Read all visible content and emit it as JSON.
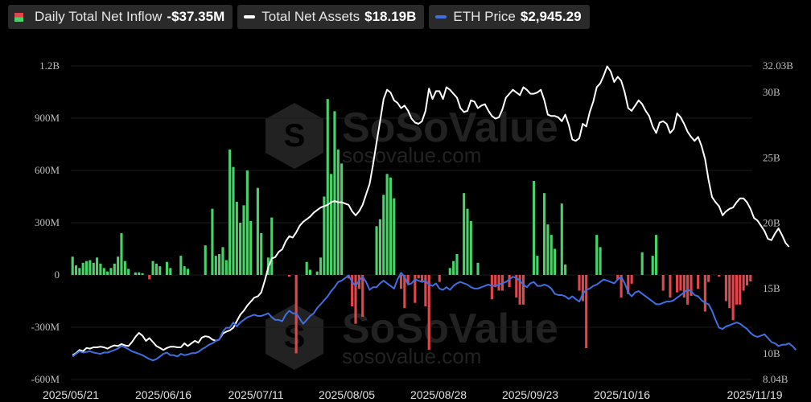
{
  "legend": {
    "inflow": {
      "label": "Daily Total Net Inflow",
      "value": "-$37.35M"
    },
    "assets": {
      "label": "Total Net Assets",
      "value": "$18.19B",
      "color": "#ffffff"
    },
    "eth": {
      "label": "ETH Price",
      "value": "$2,945.29",
      "color": "#3f6fe0"
    }
  },
  "watermark": {
    "brand": "SoSoValue",
    "site": "sosovalue.com"
  },
  "colors": {
    "positive": "#4bd16a",
    "negative": "#e0474c",
    "assets_line": "#ffffff",
    "eth_line": "#3f6fe0",
    "background": "#000000"
  },
  "chart_data": {
    "type": "bar",
    "x_ticks": [
      "2025/05/21",
      "2025/06/16",
      "2025/07/11",
      "2025/08/05",
      "2025/08/28",
      "2025/09/23",
      "2025/10/16",
      "2025/11/19"
    ],
    "x_range": [
      "2025/05/21",
      "2025/11/19"
    ],
    "left_axis": {
      "ticks": [
        "1.2B",
        "900M",
        "600M",
        "300M",
        "0",
        "-300M",
        "-600M"
      ],
      "ylim": [
        -600,
        1200
      ],
      "unit": "M"
    },
    "right_axis": {
      "ticks": [
        "32.03B",
        "30B",
        "25B",
        "20B",
        "15B",
        "10B",
        "8.04B"
      ],
      "ylim": [
        8.04,
        32.03
      ],
      "unit": "B"
    },
    "daily_net_inflow_M": [
      105,
      55,
      40,
      70,
      80,
      85,
      70,
      100,
      65,
      40,
      20,
      40,
      65,
      105,
      240,
      80,
      35,
      0,
      15,
      15,
      10,
      0,
      -25,
      80,
      65,
      50,
      0,
      75,
      40,
      0,
      0,
      110,
      50,
      35,
      0,
      0,
      0,
      0,
      170,
      0,
      380,
      110,
      120,
      160,
      85,
      720,
      620,
      420,
      300,
      400,
      600,
      310,
      0,
      500,
      240,
      0,
      100,
      330,
      0,
      0,
      0,
      0,
      -10,
      0,
      -450,
      0,
      0,
      75,
      30,
      0,
      20,
      100,
      450,
      1010,
      580,
      940,
      720,
      640,
      0,
      -20,
      -180,
      -280,
      -80,
      -240,
      0,
      0,
      0,
      280,
      320,
      460,
      580,
      560,
      440,
      0,
      -80,
      -190,
      -50,
      0,
      -160,
      -20,
      -40,
      -180,
      -430,
      0,
      0,
      -40,
      0,
      0,
      40,
      80,
      120,
      0,
      470,
      380,
      310,
      0,
      70,
      0,
      0,
      0,
      -140,
      -70,
      -90,
      -90,
      0,
      -70,
      0,
      -130,
      -170,
      -170,
      0,
      0,
      540,
      110,
      0,
      470,
      290,
      230,
      150,
      0,
      410,
      60,
      0,
      0,
      0,
      -90,
      -150,
      -420,
      0,
      0,
      230,
      160,
      0,
      0,
      0,
      0,
      -30,
      -130,
      0,
      -110,
      -50,
      0,
      0,
      130,
      0,
      0,
      110,
      230,
      0,
      -90,
      0,
      -130,
      0,
      -100,
      -90,
      -130,
      -170,
      -120,
      0,
      -80,
      0,
      -210,
      -40,
      0,
      0,
      -10,
      0,
      -150,
      -190,
      -260,
      -170,
      -170,
      -90,
      -60,
      -37.35
    ],
    "total_net_assets_B": [
      9.9,
      10.05,
      10.3,
      10.2,
      10.45,
      10.4,
      10.5,
      10.5,
      10.55,
      10.5,
      10.4,
      10.55,
      10.65,
      10.6,
      10.75,
      10.65,
      10.6,
      10.9,
      11.3,
      11.6,
      11.4,
      11.0,
      11.2,
      10.9,
      10.6,
      10.45,
      10.3,
      10.45,
      10.55,
      10.55,
      10.5,
      10.5,
      10.8,
      10.6,
      10.8,
      11.0,
      10.85,
      11.25,
      11.35,
      11.3,
      11.1,
      11.0,
      11.1,
      11.55,
      11.7,
      11.8,
      12.0,
      12.5,
      13.0,
      13.3,
      13.7,
      14.0,
      14.3,
      14.4,
      14.7,
      15.6,
      16.6,
      17.3,
      17.4,
      17.8,
      18.0,
      18.6,
      19.0,
      18.9,
      19.3,
      19.8,
      20.1,
      20.3,
      20.5,
      20.8,
      21.0,
      21.2,
      21.3,
      21.4,
      21.6,
      21.7,
      21.6,
      21.6,
      21.5,
      21.4,
      20.9,
      20.6,
      20.9,
      21.4,
      22.2,
      23.0,
      24.5,
      26.2,
      27.8,
      29.5,
      30.2,
      30.0,
      29.4,
      29.2,
      28.8,
      29.0,
      28.6,
      28.0,
      27.7,
      27.6,
      27.8,
      28.6,
      30.3,
      29.5,
      30.1,
      30.1,
      29.5,
      30.4,
      30.2,
      29.9,
      29.6,
      28.8,
      28.5,
      28.6,
      29.4,
      29.3,
      28.8,
      29.0,
      29.1,
      28.6,
      28.2,
      28.0,
      28.1,
      28.7,
      29.6,
      29.9,
      30.2,
      30.0,
      29.8,
      30.4,
      30.2,
      29.9,
      29.9,
      30.0,
      30.2,
      29.4,
      28.3,
      28.2,
      28.2,
      28.1,
      27.8,
      28.3,
      27.5,
      26.4,
      26.3,
      26.5,
      27.6,
      27.4,
      28.5,
      29.3,
      30.4,
      30.7,
      31.3,
      32.0,
      31.6,
      30.8,
      31.2,
      30.9,
      30.0,
      28.8,
      28.6,
      29.0,
      29.4,
      29.1,
      28.6,
      28.2,
      27.4,
      26.9,
      27.7,
      27.8,
      27.6,
      26.9,
      27.2,
      28.4,
      28.1,
      27.6,
      27.0,
      26.6,
      26.3,
      26.6,
      25.9,
      24.9,
      23.3,
      22.0,
      21.6,
      21.3,
      20.6,
      20.9,
      21.1,
      21.2,
      21.6,
      21.9,
      21.9,
      21.6,
      21.1,
      20.4,
      20.2,
      19.8,
      19.4,
      18.8,
      18.7,
      19.2,
      19.6,
      19.1,
      18.5,
      18.19
    ],
    "eth_price_bands_B": [
      9.8,
      10.0,
      10.2,
      10.1,
      10.15,
      10.2,
      10.1,
      10.05,
      10.0,
      10.1,
      10.1,
      10.2,
      10.3,
      10.4,
      10.6,
      10.5,
      10.35,
      10.2,
      10.1,
      10.0,
      9.9,
      9.75,
      9.6,
      9.5,
      9.6,
      9.8,
      10.0,
      10.1,
      9.9,
      9.9,
      9.8,
      10.0,
      9.9,
      9.95,
      10.05,
      10.05,
      10.15,
      10.35,
      10.5,
      10.7,
      10.8,
      11.0,
      11.1,
      11.7,
      12.0,
      12.0,
      12.4,
      12.1,
      12.4,
      12.6,
      12.8,
      12.9,
      13.0,
      12.9,
      12.9,
      13.0,
      13.1,
      12.8,
      12.6,
      12.6,
      12.5,
      13.0,
      13.3,
      13.1,
      13.1,
      12.7,
      12.3,
      12.6,
      12.9,
      13.1,
      13.5,
      13.8,
      14.1,
      14.4,
      14.8,
      15.1,
      15.5,
      15.6,
      15.8,
      16.0,
      15.5,
      15.2,
      15.6,
      15.9,
      15.5,
      14.9,
      15.1,
      15.1,
      15.4,
      15.6,
      15.4,
      15.2,
      15.0,
      15.7,
      16.2,
      15.9,
      15.3,
      15.4,
      15.7,
      15.6,
      15.5,
      15.6,
      15.3,
      15.2,
      15.4,
      15.0,
      14.9,
      15.1,
      14.9,
      15.2,
      15.4,
      15.5,
      15.4,
      15.3,
      15.1,
      15.0,
      15.0,
      15.1,
      15.2,
      15.3,
      15.2,
      15.2,
      15.3,
      15.4,
      15.5,
      15.7,
      15.9,
      15.8,
      15.6,
      15.3,
      15.1,
      15.4,
      15.5,
      15.2,
      15.2,
      15.3,
      15.2,
      15.0,
      14.6,
      14.5,
      14.5,
      14.4,
      14.2,
      14.4,
      14.2,
      14.0,
      14.6,
      14.9,
      15.0,
      15.2,
      15.3,
      15.5,
      15.7,
      15.6,
      15.5,
      15.4,
      15.7,
      15.9,
      15.4,
      14.7,
      14.4,
      14.7,
      14.8,
      14.6,
      14.4,
      14.2,
      14.0,
      13.8,
      13.8,
      13.9,
      14.0,
      14.0,
      14.1,
      14.3,
      14.5,
      14.7,
      14.9,
      14.8,
      14.5,
      14.4,
      14.1,
      13.9,
      13.8,
      13.3,
      12.6,
      12.0,
      11.9,
      12.1,
      12.2,
      12.3,
      12.4,
      12.3,
      12.1,
      11.9,
      11.6,
      11.4,
      11.3,
      11.4,
      11.5,
      11.2,
      10.9,
      10.8,
      10.6,
      10.7,
      10.7,
      10.8,
      10.6,
      10.3
    ]
  }
}
